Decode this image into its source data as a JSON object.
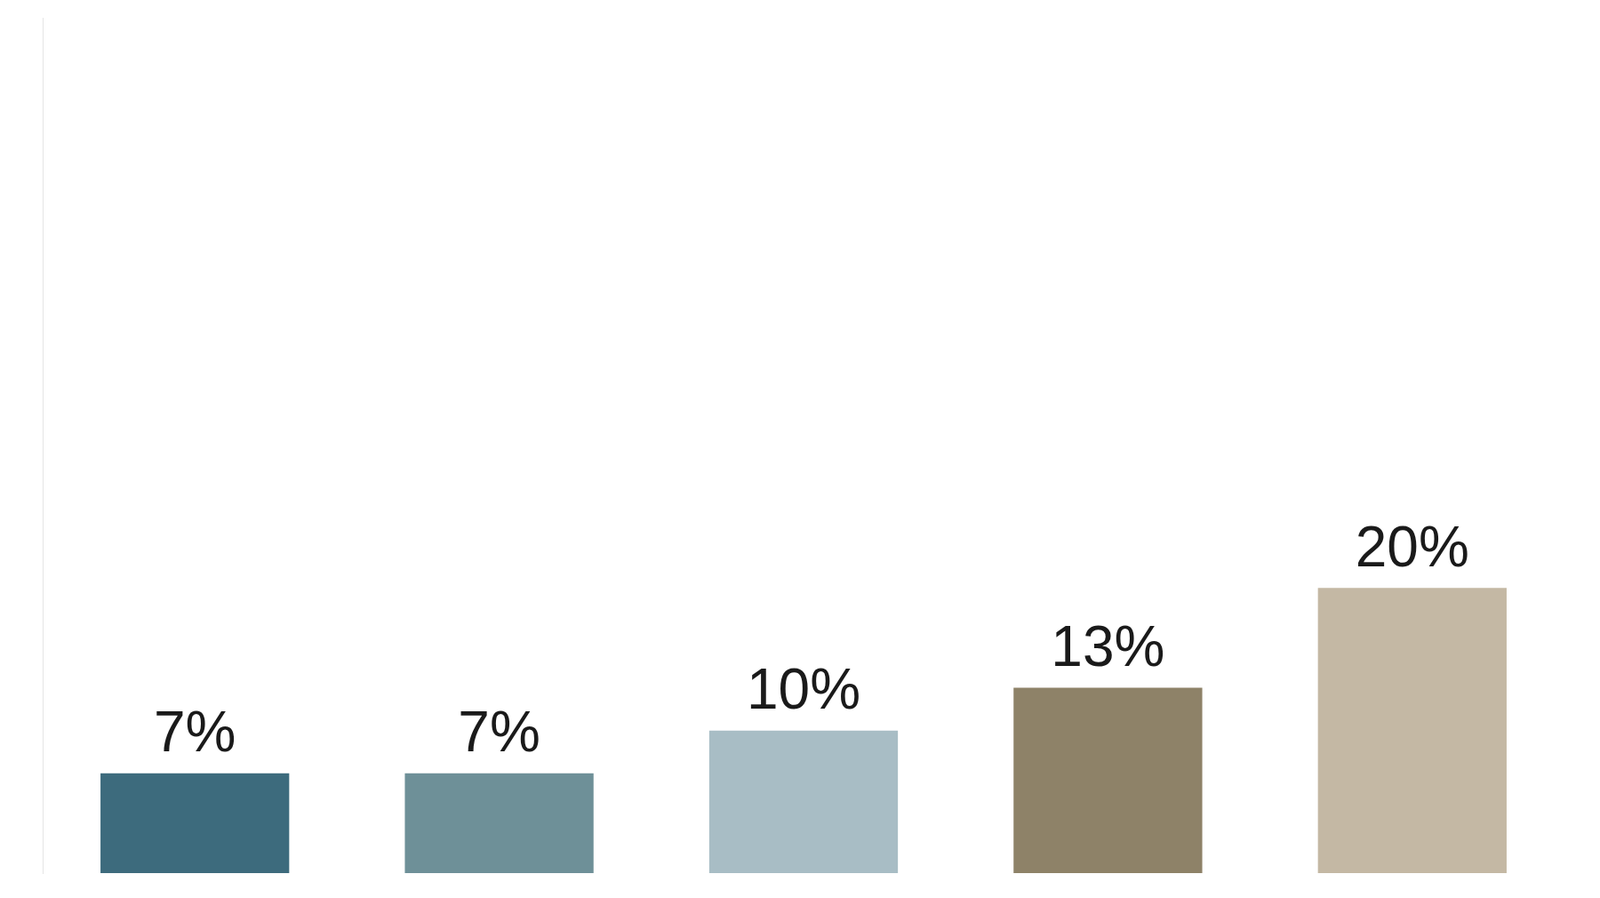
{
  "chart_data": {
    "type": "bar",
    "categories": [
      null,
      null,
      null,
      null,
      null
    ],
    "values": [
      7,
      7,
      10,
      13,
      20
    ],
    "value_labels": [
      "7%",
      "7%",
      "10%",
      "13%",
      "20%"
    ],
    "data_labels": true,
    "colors": [
      "#3d6b7d",
      "#6e9098",
      "#a8bdc5",
      "#8e8268",
      "#c4b8a4"
    ],
    "ylim": [
      0,
      60
    ],
    "grid": false,
    "tick_labels": false
  }
}
